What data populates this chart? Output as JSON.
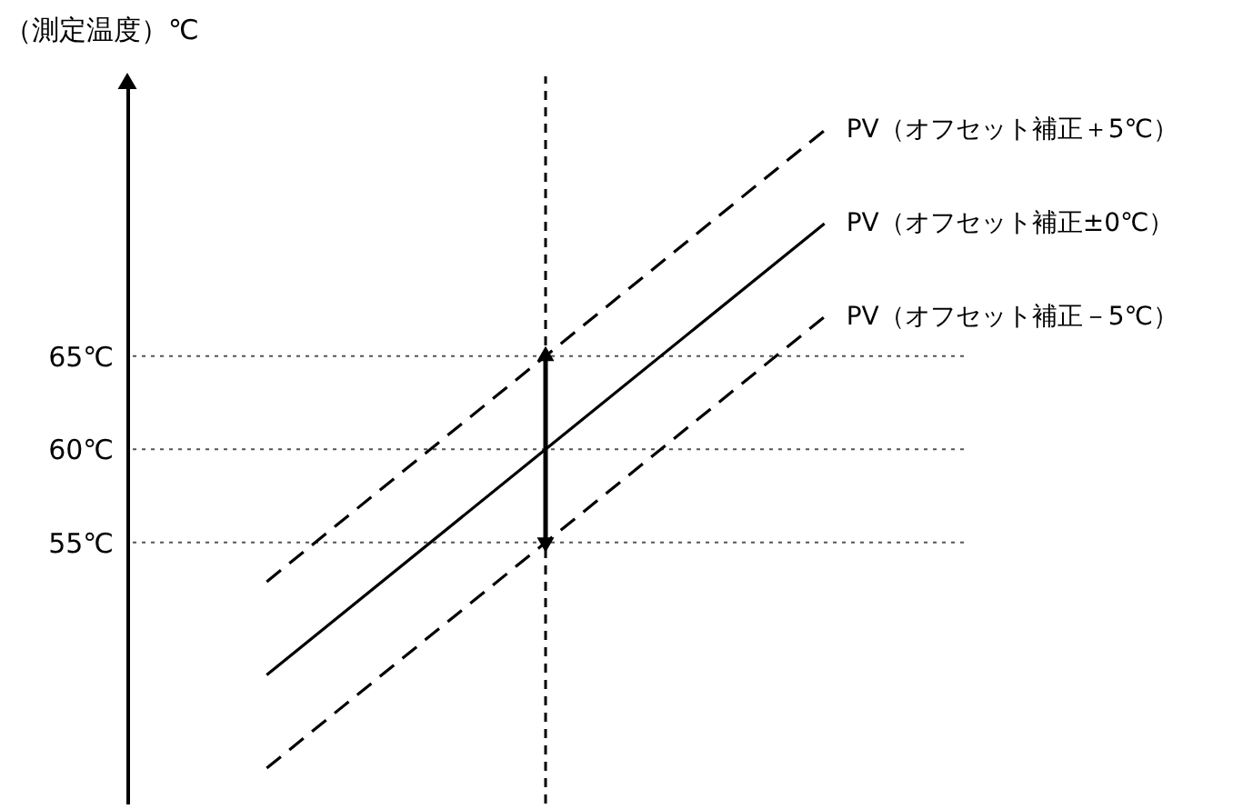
{
  "chart_data": {
    "type": "line",
    "ylabel": "（測定温度）℃",
    "categories": [
      null,
      null,
      null
    ],
    "series": [
      {
        "name": "PV（オフセット補正＋5℃）",
        "color": "#000000",
        "line_style": "dashed",
        "values": [
          52.9,
          65,
          77.1
        ]
      },
      {
        "name": "PV（オフセット補正±0℃）",
        "color": "#000000",
        "line_style": "solid",
        "values": [
          47.9,
          60,
          72.1
        ],
        "errors": [
          null,
          5,
          null
        ]
      },
      {
        "name": "PV（オフセット補正－5℃）",
        "color": "#000000",
        "line_style": "dashed",
        "values": [
          42.9,
          55,
          67.1
        ]
      }
    ],
    "ylim": [
      41,
      80
    ],
    "yticks": [
      {
        "value": 55,
        "label": "55℃"
      },
      {
        "value": 60,
        "label": "60℃"
      },
      {
        "value": 65,
        "label": "65℃"
      }
    ],
    "ref_lines": [
      {
        "axis": "y",
        "value": 65,
        "line_style": "dotted"
      },
      {
        "axis": "y",
        "value": 60,
        "line_style": "dotted"
      },
      {
        "axis": "y",
        "value": 55,
        "line_style": "dotted"
      }
    ],
    "tick_labels": "y",
    "grid": false
  }
}
